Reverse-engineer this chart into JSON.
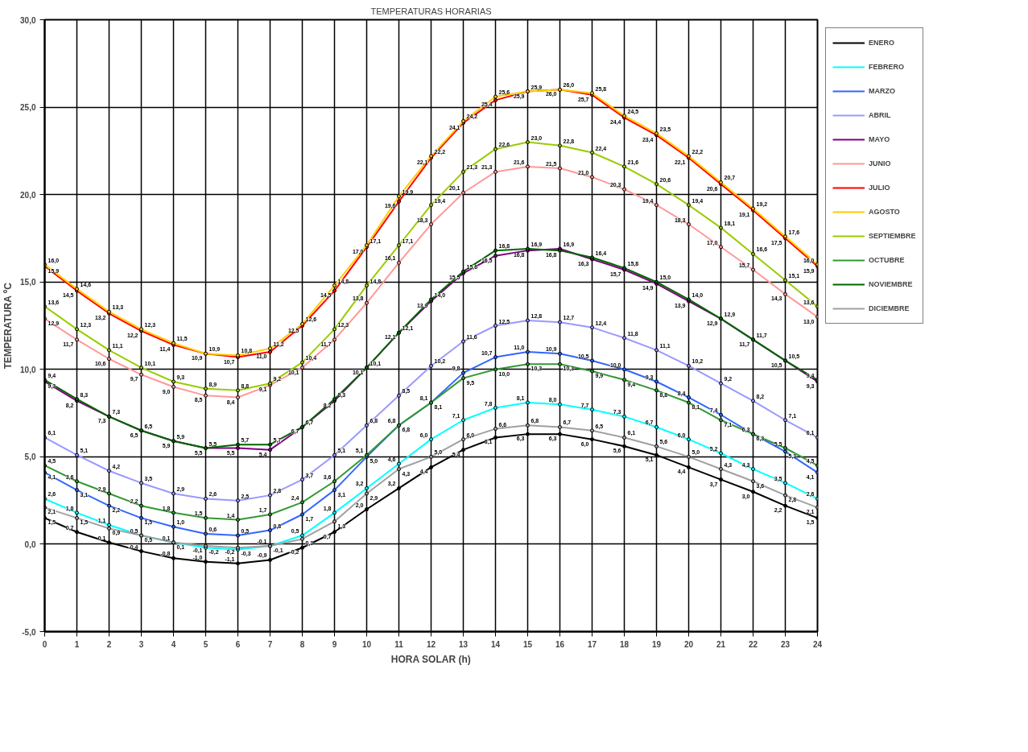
{
  "chart_data": {
    "type": "line",
    "title": "TEMPERATURAS HORARIAS",
    "xlabel": "HORA SOLAR (h)",
    "ylabel": "TEMPERATURA ºC",
    "x": [
      0,
      1,
      2,
      3,
      4,
      5,
      6,
      7,
      8,
      9,
      10,
      11,
      12,
      13,
      14,
      15,
      16,
      17,
      18,
      19,
      20,
      21,
      22,
      23,
      24
    ],
    "xlim": [
      0,
      24
    ],
    "xticks": [
      0,
      1,
      2,
      3,
      4,
      5,
      6,
      7,
      8,
      9,
      10,
      11,
      12,
      13,
      14,
      15,
      16,
      17,
      18,
      19,
      20,
      21,
      22,
      23,
      24
    ],
    "ylim": [
      -5,
      30
    ],
    "yticks": [
      {
        "value": -5,
        "label": "-5,0"
      },
      {
        "value": 0,
        "label": "0,0"
      },
      {
        "value": 5,
        "label": "5,0"
      },
      {
        "value": 10,
        "label": "10,0"
      },
      {
        "value": 15,
        "label": "15,0"
      },
      {
        "value": 20,
        "label": "20,0"
      },
      {
        "value": 25,
        "label": "25,0"
      },
      {
        "value": 30,
        "label": "30,0"
      }
    ],
    "grid": true,
    "legend": "right",
    "marker": "circle",
    "line_style": "solid",
    "series": [
      {
        "name": "ENERO",
        "color": "#000000",
        "values": [
          1.5,
          0.7,
          0.1,
          -0.4,
          -0.8,
          -1.0,
          -1.1,
          -0.9,
          -0.2,
          0.7,
          2.0,
          3.2,
          4.4,
          5.4,
          6.1,
          6.3,
          6.3,
          6.0,
          5.6,
          5.1,
          4.4,
          3.7,
          3.0,
          2.2,
          1.5
        ],
        "value_labels": [
          "1,5",
          "0,7",
          "0,1",
          "-0,4",
          "-0,8",
          "-1,0",
          "-1,1",
          "-0,9",
          "-0,2",
          "0,7",
          "2,0",
          "3,2",
          "4,4",
          "5,4",
          "6,1",
          "6,3",
          "6,3",
          "6,0",
          "5,6",
          "5,1",
          "4,4",
          "3,7",
          "3,0",
          "2,2",
          "1,5"
        ]
      },
      {
        "name": "FEBRERO",
        "color": "#00ffff",
        "values": [
          2.6,
          1.8,
          1.1,
          0.5,
          0.1,
          -0.2,
          -0.3,
          -0.1,
          0.5,
          1.8,
          3.2,
          4.6,
          6.0,
          7.1,
          7.8,
          8.1,
          8.0,
          7.7,
          7.3,
          6.7,
          6.0,
          5.2,
          4.3,
          3.5,
          2.6
        ],
        "value_labels": [
          "2,6",
          "1,8",
          "1,1",
          "0,5",
          "0,1",
          "-0,2",
          "-0,3",
          "-0,1",
          "0,5",
          "1,8",
          "3,2",
          "4,6",
          "6,0",
          "7,1",
          "7,8",
          "8,1",
          "8,0",
          "7,7",
          "7,3",
          "6,7",
          "6,0",
          "5,2",
          "4,3",
          "3,5",
          "2,6"
        ]
      },
      {
        "name": "MARZO",
        "color": "#3366ff",
        "values": [
          4.1,
          3.1,
          2.2,
          1.5,
          1.0,
          0.6,
          0.5,
          0.8,
          1.7,
          3.1,
          5.0,
          6.8,
          8.1,
          9.8,
          10.7,
          11.0,
          10.9,
          10.5,
          10.0,
          9.3,
          8.4,
          7.4,
          6.3,
          5.3,
          4.1
        ],
        "value_labels": [
          "4,1",
          "3,1",
          "2,2",
          "1,5",
          "1,0",
          "0,6",
          "0,5",
          "0,8",
          "1,7",
          "3,1",
          "5,0",
          "6,8",
          "8,1",
          "9,8",
          "10,7",
          "11,0",
          "10,9",
          "10,5",
          "10,0",
          "9,3",
          "8,4",
          "7,4",
          "6,3",
          "5,3",
          "4,1"
        ]
      },
      {
        "name": "ABRIL",
        "color": "#9999ff",
        "values": [
          6.1,
          5.1,
          4.2,
          3.5,
          2.9,
          2.6,
          2.5,
          2.8,
          3.7,
          5.1,
          6.8,
          8.5,
          10.2,
          11.6,
          12.5,
          12.8,
          12.7,
          12.4,
          11.8,
          11.1,
          10.2,
          9.2,
          8.2,
          7.1,
          6.1
        ],
        "value_labels": [
          "6,1",
          "5,1",
          "4,2",
          "3,5",
          "2,9",
          "2,6",
          "2,5",
          "2,8",
          "3,7",
          "5,1",
          "6,8",
          "8,5",
          "10,2",
          "11,6",
          "12,5",
          "12,8",
          "12,7",
          "12,4",
          "11,8",
          "11,1",
          "10,2",
          "9,2",
          "8,2",
          "7,1",
          "6,1"
        ]
      },
      {
        "name": "MAYO",
        "color": "#800080",
        "values": [
          9.3,
          8.2,
          7.3,
          6.5,
          5.9,
          5.5,
          5.5,
          5.4,
          6.7,
          8.2,
          10.1,
          12.1,
          13.9,
          15.5,
          16.5,
          16.8,
          16.9,
          16.3,
          15.7,
          14.9,
          13.9,
          12.9,
          11.7,
          10.5,
          9.3
        ],
        "value_labels": [
          "9,3",
          "8,2",
          "7,3",
          "6,5",
          "5,9",
          "5,5",
          "5,5",
          "5,4",
          "6,7",
          "8,2",
          "10,1",
          "12,1",
          "13,9",
          "15,5",
          "16,5",
          "16,8",
          "16,9",
          "16,3",
          "15,7",
          "14,9",
          "13,9",
          "12,9",
          "11,7",
          "10,5",
          "9,3"
        ]
      },
      {
        "name": "JUNIO",
        "color": "#ff9999",
        "values": [
          12.9,
          11.7,
          10.6,
          9.7,
          9.0,
          8.5,
          8.4,
          9.1,
          10.1,
          11.7,
          13.8,
          16.1,
          18.3,
          20.1,
          21.3,
          21.6,
          21.5,
          21.0,
          20.3,
          19.4,
          18.3,
          17.0,
          15.7,
          14.3,
          13.0
        ],
        "value_labels": [
          "12,9",
          "11,7",
          "10,6",
          "9,7",
          "9,0",
          "8,5",
          "8,4",
          "9,1",
          "10,1",
          "11,7",
          "13,8",
          "16,1",
          "18,3",
          "20,1",
          "21,3",
          "21,6",
          "21,5",
          "21,0",
          "20,3",
          "19,4",
          "18,3",
          "17,0",
          "15,7",
          "14,3",
          "13,0"
        ]
      },
      {
        "name": "JULIO",
        "color": "#ff0000",
        "values": [
          15.9,
          14.5,
          13.2,
          12.2,
          11.4,
          10.9,
          10.7,
          11.0,
          12.5,
          14.5,
          17.0,
          19.6,
          22.1,
          24.1,
          25.4,
          25.9,
          26.0,
          25.7,
          24.4,
          23.4,
          22.1,
          20.6,
          19.1,
          17.5,
          15.9
        ],
        "value_labels": [
          "15,9",
          "14,5",
          "13,2",
          "12,2",
          "11,4",
          "10,9",
          "10,7",
          "11,0",
          "12,5",
          "14,5",
          "17,0",
          "19,6",
          "22,1",
          "24,1",
          "25,4",
          "25,9",
          "26,0",
          "25,7",
          "24,4",
          "23,4",
          "22,1",
          "20,6",
          "19,1",
          "17,5",
          "15,9"
        ]
      },
      {
        "name": "AGOSTO",
        "color": "#ffcc00",
        "values": [
          16.0,
          14.6,
          13.3,
          12.3,
          11.5,
          10.9,
          10.8,
          11.2,
          12.6,
          14.8,
          17.1,
          19.9,
          22.2,
          24.2,
          25.6,
          25.9,
          26.0,
          25.8,
          24.5,
          23.5,
          22.2,
          20.7,
          19.2,
          17.6,
          16.0
        ],
        "value_labels": [
          "16,0",
          "14,6",
          "13,3",
          "12,3",
          "11,5",
          "10,9",
          "10,8",
          "11,2",
          "12,6",
          "14,8",
          "17,1",
          "19,9",
          "22,2",
          "24,2",
          "25,6",
          "25,9",
          "26,0",
          "25,8",
          "24,5",
          "23,5",
          "22,2",
          "20,7",
          "19,2",
          "17,6",
          "16,0"
        ]
      },
      {
        "name": "SEPTIEMBRE",
        "color": "#99cc00",
        "values": [
          13.6,
          12.3,
          11.1,
          10.1,
          9.3,
          8.9,
          8.8,
          9.2,
          10.4,
          12.3,
          14.8,
          17.1,
          19.4,
          21.3,
          22.6,
          23.0,
          22.8,
          22.4,
          21.6,
          20.6,
          19.4,
          18.1,
          16.6,
          15.1,
          13.6
        ],
        "value_labels": [
          "13,6",
          "12,3",
          "11,1",
          "10,1",
          "9,3",
          "8,9",
          "8,8",
          "9,2",
          "10,4",
          "12,3",
          "14,8",
          "17,1",
          "19,4",
          "21,3",
          "22,6",
          "23,0",
          "22,8",
          "22,4",
          "21,6",
          "20,6",
          "19,4",
          "18,1",
          "16,6",
          "15,1",
          "13,6"
        ]
      },
      {
        "name": "OCTUBRE",
        "color": "#339933",
        "values": [
          4.5,
          3.6,
          2.9,
          2.2,
          1.8,
          1.5,
          1.4,
          1.7,
          2.4,
          3.6,
          5.1,
          6.8,
          8.1,
          9.5,
          10.0,
          10.3,
          10.3,
          9.9,
          9.4,
          8.8,
          8.1,
          7.1,
          6.3,
          5.5,
          4.5
        ],
        "value_labels": [
          "4,5",
          "3,6",
          "2,9",
          "2,2",
          "1,8",
          "1,5",
          "1,4",
          "1,7",
          "2,4",
          "3,6",
          "5,1",
          "6,8",
          "8,1",
          "9,5",
          "10,0",
          "10,3",
          "10,3",
          "9,9",
          "9,4",
          "8,8",
          "8,1",
          "7,1",
          "6,3",
          "5,5",
          "4,5"
        ]
      },
      {
        "name": "NOVIEMBRE",
        "color": "#006600",
        "values": [
          9.4,
          8.3,
          7.3,
          6.5,
          5.9,
          5.5,
          5.7,
          5.7,
          6.7,
          8.3,
          10.1,
          12.1,
          14.0,
          15.6,
          16.8,
          16.9,
          16.8,
          16.4,
          15.8,
          15.0,
          14.0,
          12.9,
          11.7,
          10.5,
          9.4
        ],
        "value_labels": [
          "9,4",
          "8,3",
          "7,3",
          "6,5",
          "5,9",
          "5,5",
          "5,7",
          "5,7",
          "6,7",
          "8,3",
          "10,1",
          "12,1",
          "14,0",
          "15,6",
          "16,8",
          "16,9",
          "16,8",
          "16,4",
          "15,8",
          "15,0",
          "14,0",
          "12,9",
          "11,7",
          "10,5",
          "9,4"
        ]
      },
      {
        "name": "DICIEMBRE",
        "color": "#a0a0a0",
        "values": [
          2.1,
          1.5,
          0.9,
          0.5,
          0.1,
          -0.1,
          -0.2,
          -0.1,
          0.3,
          1.3,
          2.9,
          4.3,
          5.0,
          6.0,
          6.6,
          6.8,
          6.7,
          6.5,
          6.1,
          5.6,
          5.0,
          4.3,
          3.6,
          2.8,
          2.1
        ],
        "value_labels": [
          "2,1",
          "1,5",
          "0,9",
          "0,5",
          "0,1",
          "-0,1",
          "-0,2",
          "-0,1",
          "0,3",
          "1,3",
          "2,9",
          "4,3",
          "5,0",
          "6,0",
          "6,6",
          "6,8",
          "6,7",
          "6,5",
          "6,1",
          "5,6",
          "5,0",
          "4,3",
          "3,6",
          "2,8",
          "2,1"
        ]
      }
    ]
  }
}
